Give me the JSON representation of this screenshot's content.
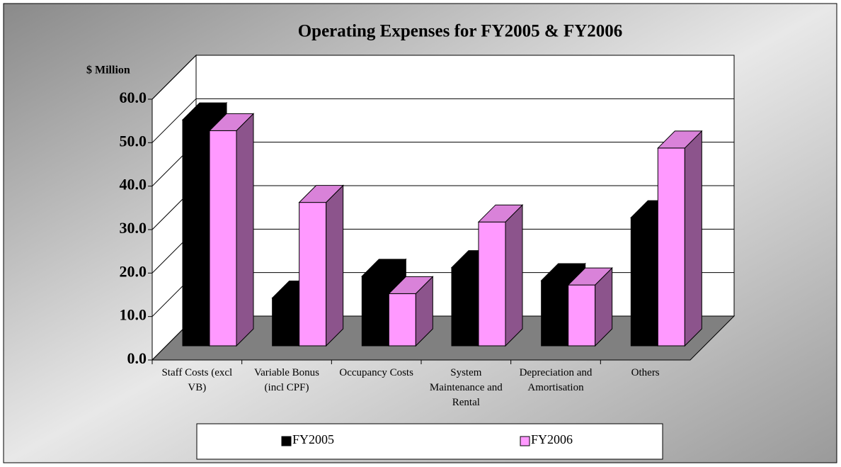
{
  "chart_data": {
    "type": "bar3d",
    "title": "Operating Expenses for FY2005 & FY2006",
    "ylabel": "$ Million",
    "categories": [
      "Staff Costs (excl VB)",
      "Variable Bonus (incl CPF)",
      "Occupancy Costs",
      "System Maintenance and Rental",
      "Depreciation and Amortisation",
      "Others"
    ],
    "series": [
      {
        "name": "FY2005",
        "color": "#000000",
        "values": [
          52.0,
          11.0,
          16.0,
          18.0,
          15.0,
          29.5
        ]
      },
      {
        "name": "FY2006",
        "color": "#ff99ff",
        "values": [
          49.5,
          33.0,
          12.0,
          28.5,
          14.0,
          45.5
        ]
      }
    ],
    "ylim": [
      0,
      60
    ],
    "yticks": [
      {
        "value": 0,
        "label": "0.0"
      },
      {
        "value": 10,
        "label": "10.0"
      },
      {
        "value": 20,
        "label": "20.0"
      },
      {
        "value": 30,
        "label": "30.0"
      },
      {
        "value": 40,
        "label": "40.0"
      },
      {
        "value": 50,
        "label": "50.0"
      },
      {
        "value": 60,
        "label": "60.0"
      }
    ],
    "grid": true,
    "legend": "bottom"
  }
}
